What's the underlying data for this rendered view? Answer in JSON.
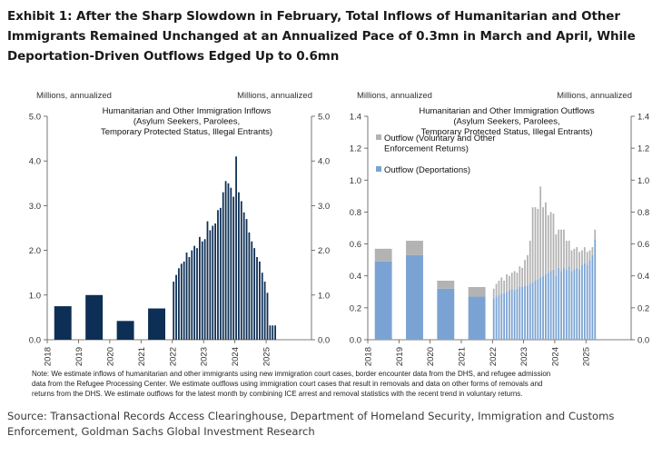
{
  "title_lines": [
    "Exhibit 1: After the Sharp Slowdown in February, Total Inflows of Humanitarian and Other",
    "Immigrants Remained Unchanged at an Annualized Pace of 0.3mn in March and April, While",
    "Deportation-Driven Outflows Edged Up to 0.6mn"
  ],
  "note_lines": [
    "Note: We estimate inflows of humanitarian and other immigrants using new immigration court cases, border encounter data from the DHS, and refugee admission",
    "data from the Refugee Processing Center. We estimate outflows using immigration court cases that result in removals and data on other forms of removals and",
    "returns from the DHS.  We estimate outflows for the latest month by combining ICE arrest and removal statistics with the recent trend in voluntary returns."
  ],
  "source_lines": [
    "Source: Transactional Records Access Clearinghouse, Department of Homeland Security, Immigration and Customs",
    "Enforcement, Goldman Sachs Global Investment Research"
  ],
  "colors": {
    "inflow": "#0e2f55",
    "deportation": "#7aa3d3",
    "voluntary": "#b3b3b3"
  },
  "chart_data": [
    {
      "type": "bar",
      "title_lines": [
        "Humanitarian and Other Immigration Inflows",
        "(Asylum Seekers, Parolees,",
        "Temporary Protected Status, Illegal Entrants)"
      ],
      "left_unit": "Millions, annualized",
      "right_unit": "Millions, annualized",
      "ylim": [
        0,
        5
      ],
      "yticks": [
        "0.0",
        "1.0",
        "2.0",
        "3.0",
        "4.0",
        "5.0"
      ],
      "xticks": [
        "2018",
        "2019",
        "2020",
        "2021",
        "2022",
        "2023",
        "2024",
        "2025"
      ],
      "annual": [
        {
          "year": 2018,
          "value": 0.75
        },
        {
          "year": 2019,
          "value": 1.0
        },
        {
          "year": 2020,
          "value": 0.42
        },
        {
          "year": 2021,
          "value": 0.7
        }
      ],
      "monthly_start": "2022-01",
      "monthly_values": [
        1.3,
        1.45,
        1.6,
        1.7,
        1.75,
        1.95,
        1.85,
        2.0,
        2.1,
        2.05,
        2.3,
        2.2,
        2.25,
        2.65,
        2.45,
        2.55,
        2.6,
        2.9,
        2.95,
        3.3,
        3.55,
        3.5,
        3.4,
        3.2,
        4.1,
        3.3,
        3.1,
        2.85,
        2.7,
        2.4,
        2.2,
        2.05,
        1.85,
        1.75,
        1.5,
        1.3,
        1.05,
        0.32,
        0.32,
        0.32
      ]
    },
    {
      "type": "bar",
      "stacked": true,
      "title_lines": [
        "Humanitarian and Other Immigration Outflows",
        "(Asylum Seekers, Parolees,",
        "Temporary Protected Status, Illegal Entrants)"
      ],
      "left_unit": "Millions, annualized",
      "right_unit": "Millions, annualized",
      "ylim": [
        0,
        1.4
      ],
      "yticks": [
        "0.0",
        "0.2",
        "0.4",
        "0.6",
        "0.8",
        "1.0",
        "1.2",
        "1.4"
      ],
      "xticks": [
        "2018",
        "2019",
        "2020",
        "2021",
        "2022",
        "2023",
        "2024",
        "2025"
      ],
      "legend": [
        {
          "name": "Outflow (Voluntary and Other",
          "name2": "Enforcement Returns)",
          "color": "voluntary"
        },
        {
          "name": "Outflow (Deportations)",
          "name2": "",
          "color": "deportation"
        }
      ],
      "annual": [
        {
          "year": 2018,
          "deportation": 0.49,
          "voluntary": 0.08
        },
        {
          "year": 2019,
          "deportation": 0.53,
          "voluntary": 0.09
        },
        {
          "year": 2020,
          "deportation": 0.32,
          "voluntary": 0.05
        },
        {
          "year": 2021,
          "deportation": 0.27,
          "voluntary": 0.06
        }
      ],
      "monthly_start": "2022-01",
      "monthly_deportation": [
        0.26,
        0.27,
        0.28,
        0.29,
        0.29,
        0.3,
        0.31,
        0.32,
        0.31,
        0.32,
        0.33,
        0.33,
        0.34,
        0.34,
        0.35,
        0.36,
        0.37,
        0.38,
        0.39,
        0.4,
        0.41,
        0.42,
        0.43,
        0.44,
        0.4,
        0.45,
        0.43,
        0.45,
        0.44,
        0.46,
        0.43,
        0.44,
        0.45,
        0.44,
        0.47,
        0.48,
        0.47,
        0.5,
        0.53,
        0.63
      ],
      "monthly_voluntary": [
        0.06,
        0.08,
        0.09,
        0.1,
        0.08,
        0.11,
        0.09,
        0.1,
        0.12,
        0.1,
        0.13,
        0.12,
        0.16,
        0.19,
        0.27,
        0.47,
        0.46,
        0.44,
        0.57,
        0.43,
        0.45,
        0.36,
        0.37,
        0.35,
        0.26,
        0.24,
        0.26,
        0.24,
        0.18,
        0.16,
        0.13,
        0.13,
        0.13,
        0.11,
        0.09,
        0.1,
        0.08,
        0.06,
        0.05,
        0.06
      ]
    }
  ]
}
